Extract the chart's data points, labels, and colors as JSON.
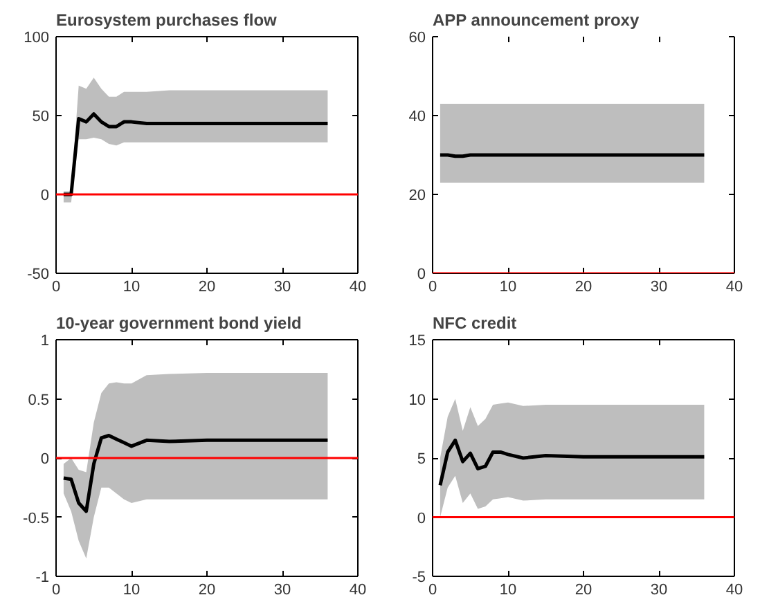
{
  "chart_data": [
    {
      "type": "line",
      "title": "Eurosystem purchases flow",
      "x": [
        1,
        2,
        3,
        4,
        5,
        6,
        7,
        8,
        9,
        10,
        12,
        15,
        20,
        36
      ],
      "xlim": [
        0,
        40
      ],
      "xticks": [
        0,
        10,
        20,
        30,
        40
      ],
      "ylim": [
        -50,
        100
      ],
      "yticks": [
        -50,
        0,
        50,
        100
      ],
      "grid": false,
      "series": [
        {
          "color": "#000000",
          "values": [
            0,
            0,
            48,
            46,
            51,
            46,
            43,
            43,
            46,
            46,
            45,
            45,
            45,
            45
          ],
          "lower": [
            -5,
            -5,
            35,
            35,
            36,
            35,
            32,
            31,
            33,
            33,
            33,
            33,
            33,
            33
          ],
          "upper": [
            2,
            2,
            69,
            67,
            74,
            67,
            62,
            62,
            65,
            65,
            65,
            66,
            66,
            66
          ]
        }
      ],
      "ref_lines": [
        {
          "axis": "y",
          "value": 0,
          "color": "#ff0000"
        }
      ]
    },
    {
      "type": "line",
      "title": "APP announcement proxy",
      "x": [
        1,
        2,
        3,
        4,
        5,
        6,
        7,
        8,
        9,
        10,
        12,
        15,
        20,
        36
      ],
      "xlim": [
        0,
        40
      ],
      "xticks": [
        0,
        10,
        20,
        30,
        40
      ],
      "ylim": [
        0,
        60
      ],
      "yticks": [
        0,
        20,
        40,
        60
      ],
      "grid": false,
      "series": [
        {
          "color": "#000000",
          "values": [
            30,
            30,
            29.7,
            29.7,
            30,
            30,
            30,
            30,
            30,
            30,
            30,
            30,
            30,
            30
          ],
          "lower": [
            23,
            23,
            23,
            23,
            23,
            23,
            23,
            23,
            23,
            23,
            23,
            23,
            23,
            23
          ],
          "upper": [
            43,
            43,
            43,
            43,
            43,
            43,
            43,
            43,
            43,
            43,
            43,
            43,
            43,
            43
          ]
        }
      ],
      "ref_lines": [
        {
          "axis": "y",
          "value": 0,
          "color": "#ff0000"
        }
      ]
    },
    {
      "type": "line",
      "title": "10-year government bond yield",
      "x": [
        1,
        2,
        3,
        4,
        5,
        6,
        7,
        8,
        9,
        10,
        12,
        15,
        20,
        36
      ],
      "xlim": [
        0,
        40
      ],
      "xticks": [
        0,
        10,
        20,
        30,
        40
      ],
      "ylim": [
        -1,
        1
      ],
      "yticks": [
        -1,
        -0.5,
        0,
        0.5,
        1
      ],
      "grid": false,
      "series": [
        {
          "color": "#000000",
          "values": [
            -0.17,
            -0.18,
            -0.38,
            -0.45,
            -0.05,
            0.17,
            0.19,
            0.16,
            0.13,
            0.1,
            0.15,
            0.14,
            0.15,
            0.15
          ],
          "lower": [
            -0.3,
            -0.45,
            -0.7,
            -0.85,
            -0.5,
            -0.25,
            -0.25,
            -0.3,
            -0.35,
            -0.38,
            -0.35,
            -0.35,
            -0.35,
            -0.35
          ],
          "upper": [
            -0.05,
            0,
            -0.1,
            -0.12,
            0.3,
            0.55,
            0.63,
            0.64,
            0.63,
            0.63,
            0.7,
            0.71,
            0.72,
            0.72
          ]
        }
      ],
      "ref_lines": [
        {
          "axis": "y",
          "value": 0,
          "color": "#ff0000"
        }
      ]
    },
    {
      "type": "line",
      "title": "NFC credit",
      "x": [
        1,
        2,
        3,
        4,
        5,
        6,
        7,
        8,
        9,
        10,
        12,
        15,
        20,
        36
      ],
      "xlim": [
        0,
        40
      ],
      "xticks": [
        0,
        10,
        20,
        30,
        40
      ],
      "ylim": [
        -5,
        15
      ],
      "yticks": [
        -5,
        0,
        5,
        10,
        15
      ],
      "grid": false,
      "series": [
        {
          "color": "#000000",
          "values": [
            2.7,
            5.5,
            6.5,
            4.7,
            5.4,
            4.1,
            4.3,
            5.5,
            5.5,
            5.3,
            5.0,
            5.2,
            5.1,
            5.1
          ],
          "lower": [
            0,
            2.5,
            3.5,
            1.2,
            2,
            0.7,
            0.9,
            1.5,
            1.6,
            1.7,
            1.4,
            1.5,
            1.5,
            1.5
          ],
          "upper": [
            5,
            8.5,
            10,
            7.3,
            9.3,
            7.7,
            8.3,
            9.5,
            9.6,
            9.7,
            9.4,
            9.5,
            9.5,
            9.5
          ]
        }
      ],
      "ref_lines": [
        {
          "axis": "y",
          "value": 0,
          "color": "#ff0000"
        }
      ]
    }
  ]
}
